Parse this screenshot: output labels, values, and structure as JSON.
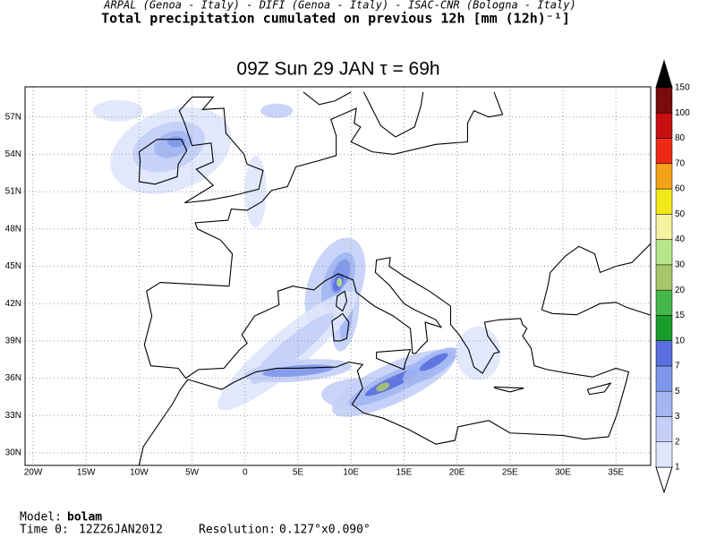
{
  "header": {
    "institutions": "ARPAL (Genoa - Italy)  -  DIFI (Genoa - Italy)  -  ISAC-CNR (Bologna - Italy)",
    "title": "Total precipitation cumulated on previous 12h [mm (12h)⁻¹]"
  },
  "map": {
    "title": "09Z Sun 29 JAN  τ = 69h",
    "lat_labels": [
      "57N",
      "54N",
      "51N",
      "48N",
      "45N",
      "42N",
      "39N",
      "36N",
      "33N",
      "30N"
    ],
    "lon_labels": [
      "20W",
      "15W",
      "10W",
      "5W",
      "0",
      "5E",
      "10E",
      "15E",
      "20E",
      "25E",
      "30E",
      "35E"
    ]
  },
  "colorbar": {
    "levels": [
      "1",
      "2",
      "3",
      "5",
      "7",
      "10",
      "15",
      "20",
      "30",
      "40",
      "50",
      "60",
      "70",
      "80",
      "100",
      "150"
    ],
    "band_colors": [
      "#dfe6fb",
      "#c3cff7",
      "#a3b6f2",
      "#7f97ea",
      "#5a6fe0",
      "#1a9c2a",
      "#45b84a",
      "#a9c66b",
      "#b8e48a",
      "#f6f2a0",
      "#f2e81a",
      "#f5a21b",
      "#ee2a14",
      "#c81010",
      "#7a0c0c"
    ],
    "under_color": "#ffffff",
    "over_color": "#000000"
  },
  "footer": {
    "model_label": "Model:",
    "model": "bolam",
    "time_label": "Time 0:",
    "time": "12Z26JAN2012",
    "resolution_label": "Resolution:",
    "resolution": "0.127°x0.090°"
  }
}
